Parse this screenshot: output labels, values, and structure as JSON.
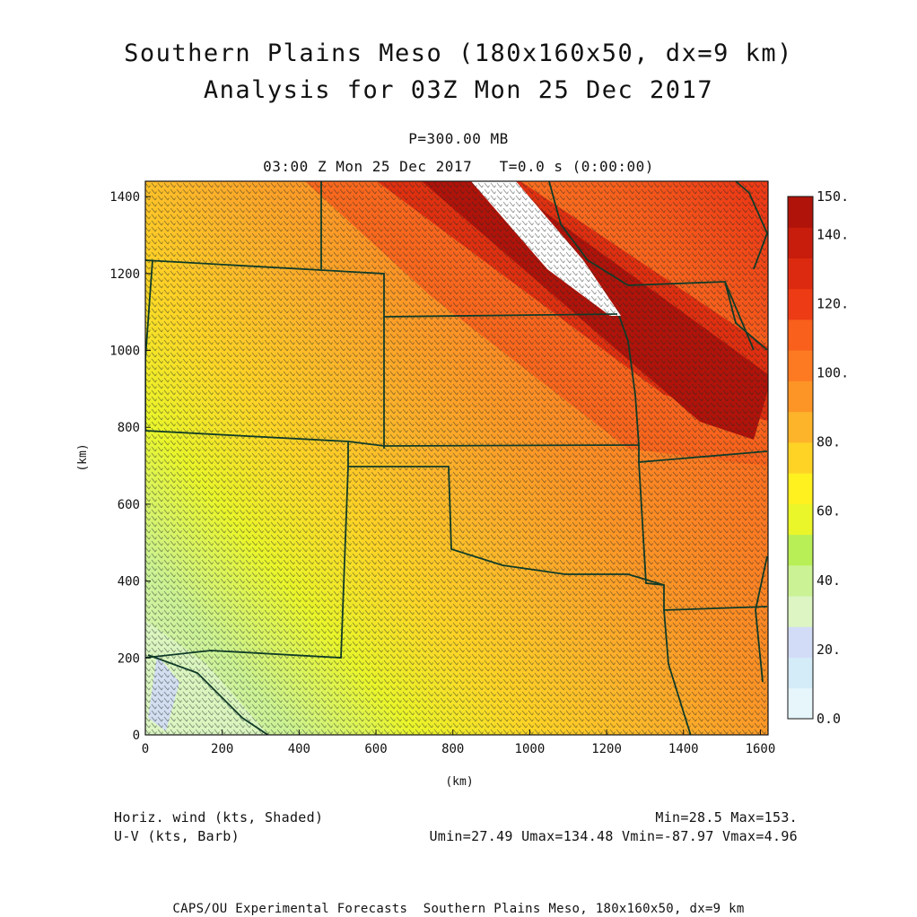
{
  "header": {
    "title_line1": "Southern Plains Meso (180x160x50, dx=9 km)",
    "title_line2": "Analysis for 03Z Mon 25 Dec 2017",
    "level": "P=300.00 MB",
    "valid_time": "03:00 Z Mon 25 Dec 2017   T=0.0 s (0:00:00)"
  },
  "footer": {
    "field1": "Horiz. wind (kts, Shaded)",
    "field2": "U-V (kts, Barb)",
    "minmax": "Min=28.5 Max=153.",
    "uv_stats": "Umin=27.49 Umax=134.48 Vmin=-87.97 Vmax=4.96",
    "credit": "CAPS/OU Experimental Forecasts  Southern Plains Meso, 180x160x50, dx=9 km"
  },
  "axes": {
    "xlabel": "(km)",
    "ylabel": "(km)",
    "xticks": [
      "0",
      "200",
      "400",
      "600",
      "800",
      "1000",
      "1200",
      "1400",
      "1600"
    ],
    "yticks": [
      "0",
      "200",
      "400",
      "600",
      "800",
      "1000",
      "1200",
      "1400"
    ],
    "xrange": [
      0,
      1620
    ],
    "yrange": [
      0,
      1440
    ]
  },
  "colorbar": {
    "labels": [
      "0.0",
      "20.",
      "40.",
      "60.",
      "80.",
      "100.",
      "120.",
      "140.",
      "150."
    ],
    "colors": [
      "#e6f6fb",
      "#d4ebf8",
      "#d2dcf6",
      "#dcf5c2",
      "#cbf294",
      "#b9ef56",
      "#eaf52a",
      "#fff020",
      "#fed326",
      "#fdb32a",
      "#fd9526",
      "#fd7a22",
      "#f8601c",
      "#ed3b16",
      "#dc2a10",
      "#c81c0c",
      "#b0130a"
    ]
  },
  "chart_data": {
    "type": "heatmap",
    "title": "Southern Plains Meso (180x160x50, dx=9 km)",
    "variable": "Horiz. wind (kts, Shaded)",
    "overlay": "U-V (kts, Barb)",
    "level": "P=300.00 MB",
    "min": 28.5,
    "max": 153,
    "umin": 27.49,
    "umax": 134.48,
    "vmin": -87.97,
    "vmax": 4.96,
    "xlabel": "(km)",
    "ylabel": "(km)",
    "xlim": [
      0,
      1620
    ],
    "ylim": [
      0,
      1440
    ],
    "scale_levels": [
      0,
      10,
      20,
      30,
      40,
      50,
      60,
      70,
      80,
      90,
      100,
      110,
      120,
      130,
      140,
      150
    ]
  }
}
